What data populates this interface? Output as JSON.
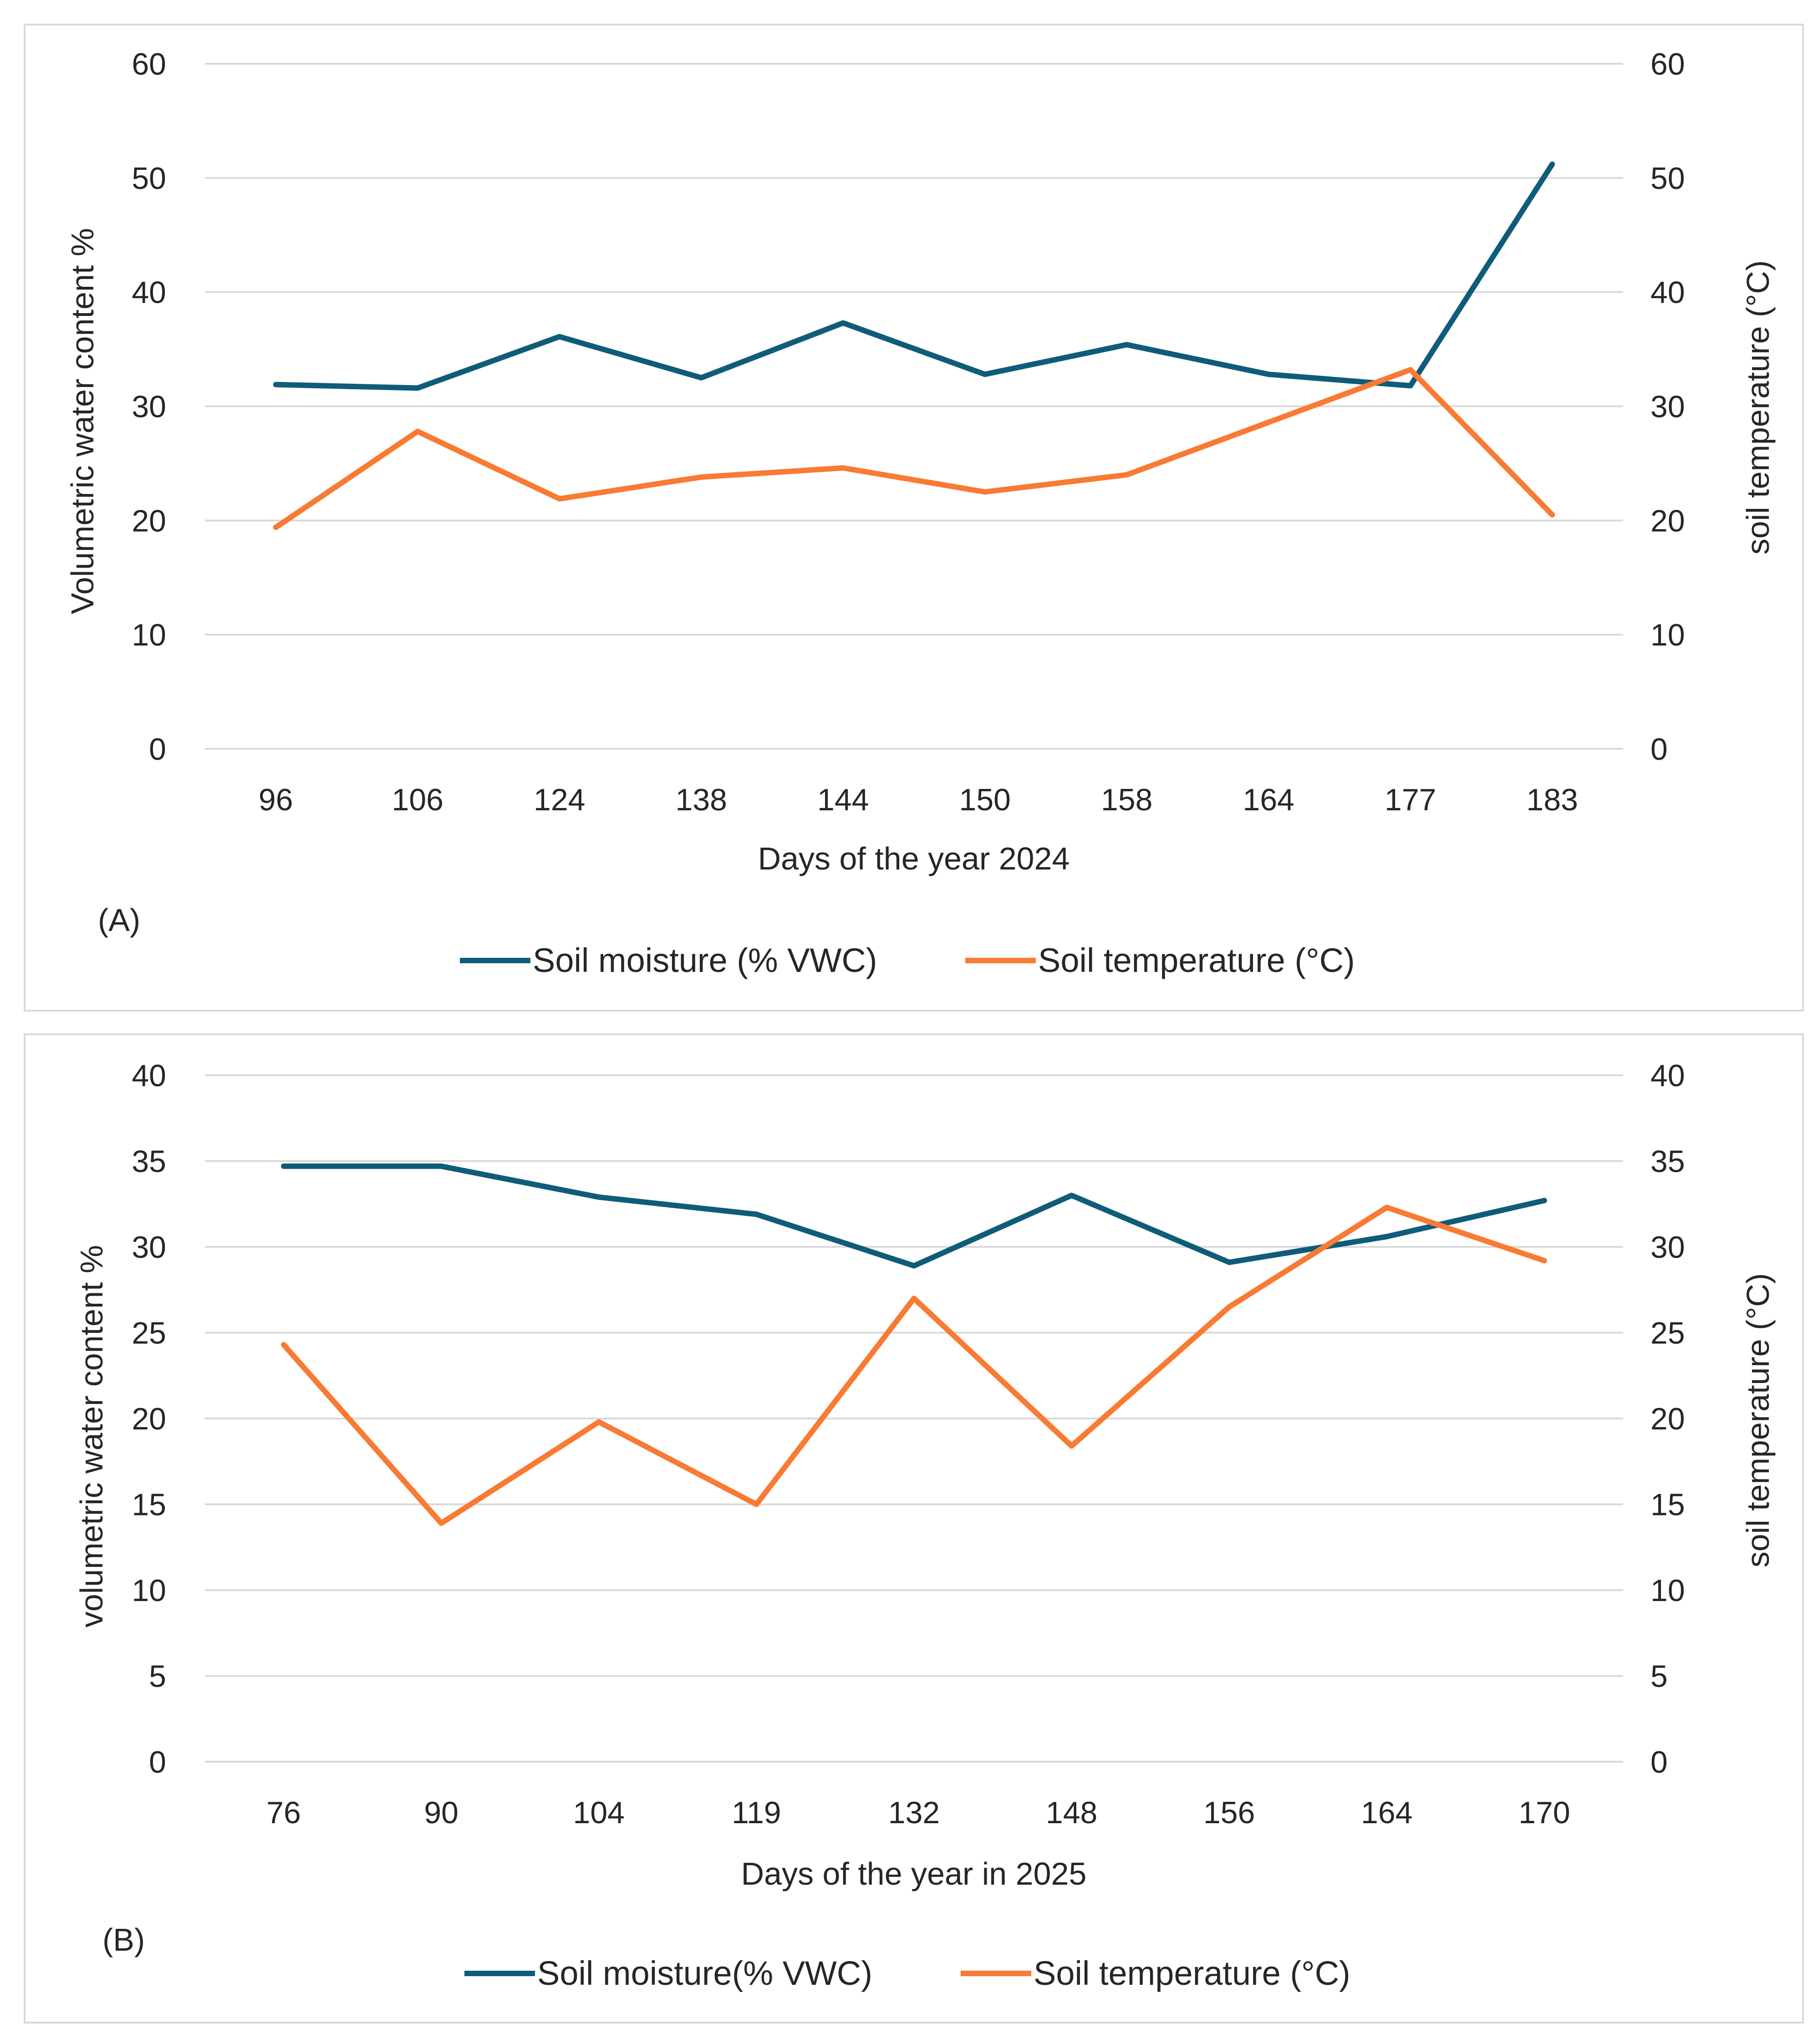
{
  "chart_data": [
    {
      "type": "line",
      "panel_label": "(A)",
      "categories": [
        "96",
        "106",
        "124",
        "138",
        "144",
        "150",
        "158",
        "164",
        "177",
        "183"
      ],
      "xlabel": "Days of the year 2024",
      "ylabel": "Volumetric water content %",
      "y2label": "soil temperature (°C)",
      "ylim": [
        0,
        60
      ],
      "y2lim": [
        0,
        60
      ],
      "yticks": [
        0,
        10,
        20,
        30,
        40,
        50,
        60
      ],
      "grid": true,
      "legend_position": "bottom",
      "series": [
        {
          "name": "Soil moisture (% VWC)",
          "color": "#0f5c7a",
          "axis": "left",
          "values": [
            31.9,
            31.6,
            36.1,
            32.5,
            37.3,
            32.8,
            35.4,
            32.8,
            31.8,
            51.2
          ]
        },
        {
          "name": "Soil temperature (°C)",
          "color": "#f97a32",
          "axis": "right",
          "values": [
            19.4,
            27.8,
            21.9,
            23.8,
            24.6,
            22.5,
            24.0,
            28.6,
            33.2,
            20.5
          ]
        }
      ]
    },
    {
      "type": "line",
      "panel_label": "(B)",
      "categories": [
        "76",
        "90",
        "104",
        "119",
        "132",
        "148",
        "156",
        "164",
        "170"
      ],
      "xlabel": "Days of the year in 2025",
      "ylabel": "volumetric water content %",
      "y2label": "soil temperature (°C)",
      "ylim": [
        0,
        40
      ],
      "y2lim": [
        0,
        40
      ],
      "yticks": [
        0,
        5,
        10,
        15,
        20,
        25,
        30,
        35,
        40
      ],
      "grid": true,
      "legend_position": "bottom",
      "series": [
        {
          "name": "Soil moisture(% VWC)",
          "color": "#0f5c7a",
          "axis": "left",
          "values": [
            34.7,
            34.7,
            32.9,
            31.9,
            28.9,
            33.0,
            29.1,
            30.6,
            32.7
          ]
        },
        {
          "name": "Soil temperature (°C)",
          "color": "#f97a32",
          "axis": "right",
          "values": [
            24.3,
            13.9,
            19.8,
            15.0,
            27.0,
            18.4,
            26.5,
            32.3,
            29.2
          ]
        }
      ]
    }
  ]
}
